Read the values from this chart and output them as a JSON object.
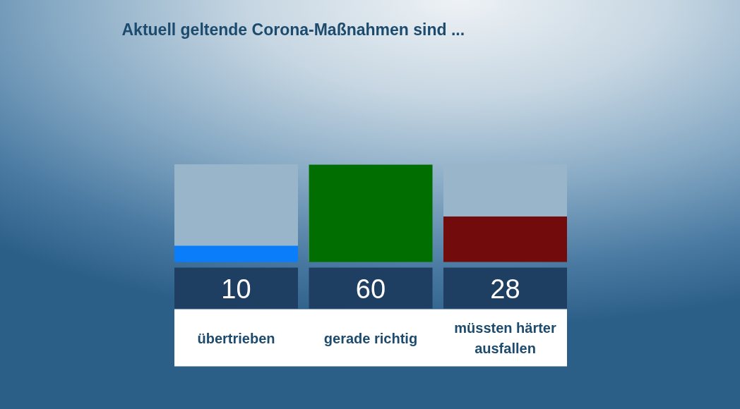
{
  "chart_data": {
    "type": "bar",
    "title": "Aktuell geltende Corona-Maßnahmen sind ...",
    "categories": [
      "übertrieben",
      "gerade richtig",
      "müssten härter ausfallen"
    ],
    "values": [
      10,
      60,
      28
    ],
    "colors": [
      "#0a7dfa",
      "#006e00",
      "#720c0c"
    ],
    "ylim": [
      0,
      60
    ],
    "data_labels": true,
    "tick_labels": false
  }
}
